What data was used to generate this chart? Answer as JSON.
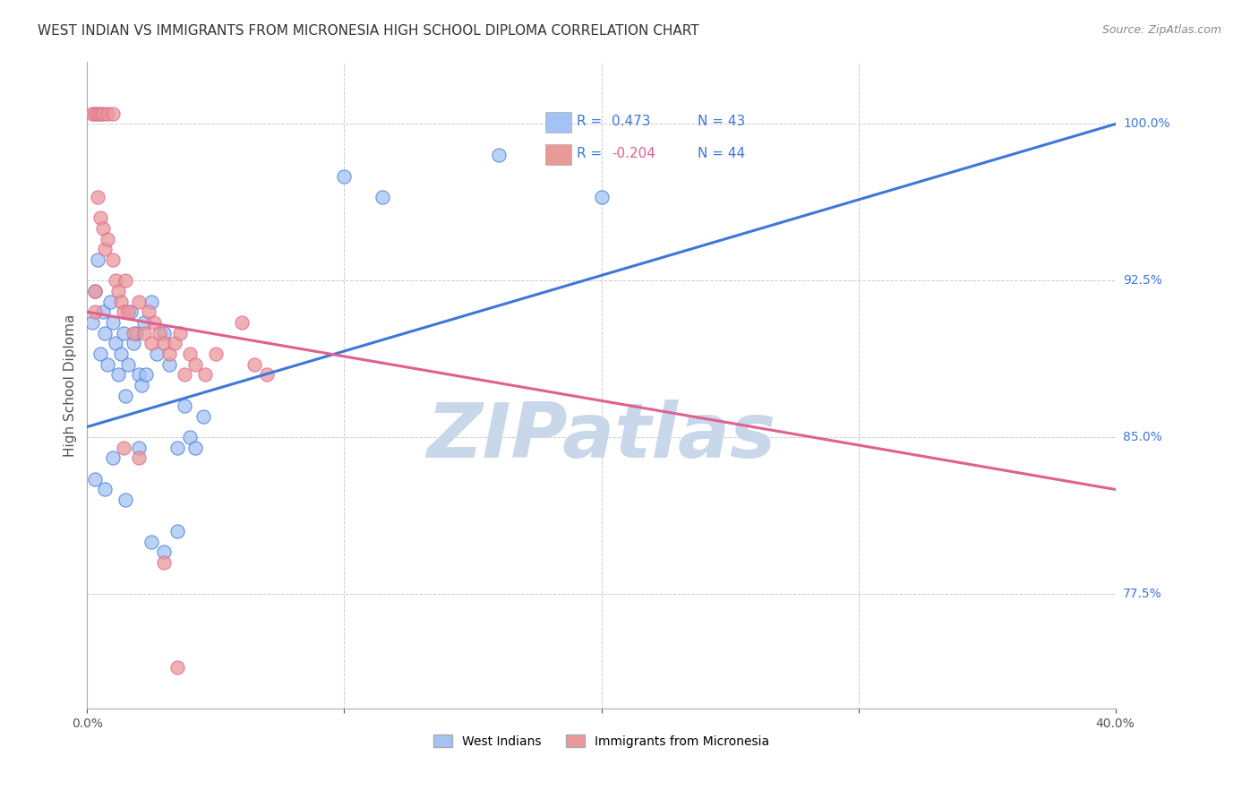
{
  "title": "WEST INDIAN VS IMMIGRANTS FROM MICRONESIA HIGH SCHOOL DIPLOMA CORRELATION CHART",
  "source": "Source: ZipAtlas.com",
  "ylabel": "High School Diploma",
  "xlim": [
    0.0,
    0.4
  ],
  "ylim": [
    72.0,
    103.0
  ],
  "r_west_indian": 0.473,
  "n_west_indian": 43,
  "r_micronesia": -0.204,
  "n_micronesia": 44,
  "blue_color": "#a4c2f4",
  "pink_color": "#ea9999",
  "blue_line_color": "#3c78d8",
  "pink_line_color": "#e06090",
  "legend_text_color": "#3c78d8",
  "blue_line_y0": 85.5,
  "blue_line_y1": 100.0,
  "pink_line_y0": 91.0,
  "pink_line_y1": 82.5,
  "west_indian_points": [
    [
      0.002,
      90.5
    ],
    [
      0.003,
      92.0
    ],
    [
      0.004,
      93.5
    ],
    [
      0.005,
      89.0
    ],
    [
      0.006,
      91.0
    ],
    [
      0.007,
      90.0
    ],
    [
      0.008,
      88.5
    ],
    [
      0.009,
      91.5
    ],
    [
      0.01,
      90.5
    ],
    [
      0.011,
      89.5
    ],
    [
      0.012,
      88.0
    ],
    [
      0.013,
      89.0
    ],
    [
      0.014,
      90.0
    ],
    [
      0.015,
      87.0
    ],
    [
      0.016,
      88.5
    ],
    [
      0.017,
      91.0
    ],
    [
      0.018,
      89.5
    ],
    [
      0.019,
      90.0
    ],
    [
      0.02,
      88.0
    ],
    [
      0.021,
      87.5
    ],
    [
      0.022,
      90.5
    ],
    [
      0.023,
      88.0
    ],
    [
      0.025,
      91.5
    ],
    [
      0.027,
      89.0
    ],
    [
      0.03,
      90.0
    ],
    [
      0.032,
      88.5
    ],
    [
      0.035,
      84.5
    ],
    [
      0.038,
      86.5
    ],
    [
      0.04,
      85.0
    ],
    [
      0.042,
      84.5
    ],
    [
      0.045,
      86.0
    ],
    [
      0.003,
      83.0
    ],
    [
      0.007,
      82.5
    ],
    [
      0.01,
      84.0
    ],
    [
      0.015,
      82.0
    ],
    [
      0.02,
      84.5
    ],
    [
      0.025,
      80.0
    ],
    [
      0.03,
      79.5
    ],
    [
      0.035,
      80.5
    ],
    [
      0.1,
      97.5
    ],
    [
      0.115,
      96.5
    ],
    [
      0.16,
      98.5
    ],
    [
      0.2,
      96.5
    ]
  ],
  "micronesia_points": [
    [
      0.002,
      100.5
    ],
    [
      0.003,
      100.5
    ],
    [
      0.004,
      100.5
    ],
    [
      0.005,
      100.5
    ],
    [
      0.006,
      100.5
    ],
    [
      0.008,
      100.5
    ],
    [
      0.01,
      100.5
    ],
    [
      0.004,
      96.5
    ],
    [
      0.005,
      95.5
    ],
    [
      0.006,
      95.0
    ],
    [
      0.007,
      94.0
    ],
    [
      0.008,
      94.5
    ],
    [
      0.01,
      93.5
    ],
    [
      0.011,
      92.5
    ],
    [
      0.012,
      92.0
    ],
    [
      0.013,
      91.5
    ],
    [
      0.014,
      91.0
    ],
    [
      0.015,
      92.5
    ],
    [
      0.016,
      91.0
    ],
    [
      0.018,
      90.0
    ],
    [
      0.02,
      91.5
    ],
    [
      0.022,
      90.0
    ],
    [
      0.024,
      91.0
    ],
    [
      0.025,
      89.5
    ],
    [
      0.026,
      90.5
    ],
    [
      0.028,
      90.0
    ],
    [
      0.03,
      89.5
    ],
    [
      0.032,
      89.0
    ],
    [
      0.034,
      89.5
    ],
    [
      0.036,
      90.0
    ],
    [
      0.038,
      88.0
    ],
    [
      0.04,
      89.0
    ],
    [
      0.042,
      88.5
    ],
    [
      0.046,
      88.0
    ],
    [
      0.05,
      89.0
    ],
    [
      0.06,
      90.5
    ],
    [
      0.065,
      88.5
    ],
    [
      0.07,
      88.0
    ],
    [
      0.003,
      92.0
    ],
    [
      0.003,
      91.0
    ],
    [
      0.014,
      84.5
    ],
    [
      0.02,
      84.0
    ],
    [
      0.03,
      79.0
    ],
    [
      0.035,
      74.0
    ]
  ],
  "background_color": "#ffffff",
  "grid_color": "#cccccc",
  "watermark": "ZIPatlas",
  "watermark_color": "#c8d8ea"
}
